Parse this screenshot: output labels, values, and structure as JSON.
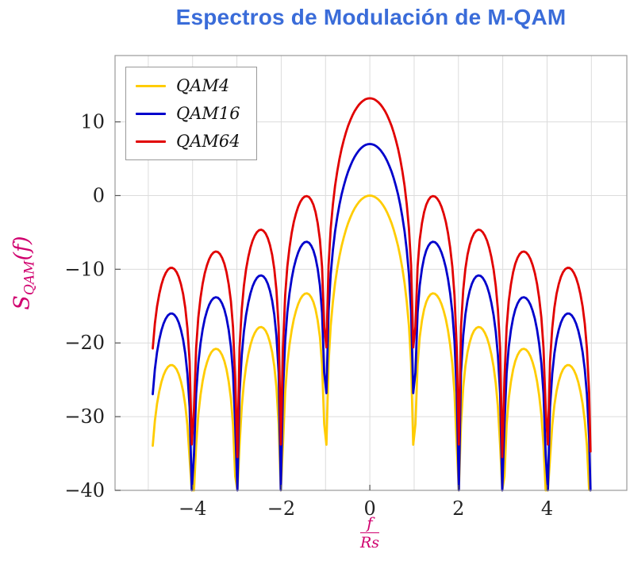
{
  "title": "Espectros de Modulación de M-QAM",
  "ylabel": {
    "main": "S",
    "sub": "QAM",
    "suffix": "(f)"
  },
  "xlabel": {
    "numerator": "f",
    "denominator": "Rs"
  },
  "colors": {
    "title": "#3A6CD9",
    "axis_label": "#D0006E",
    "tick_label": "#222222",
    "grid": "#DCDCDC",
    "frame": "#999999",
    "background": "#FFFFFF"
  },
  "chart_data": {
    "type": "line",
    "title": "Espectros de Modulación de M-QAM",
    "xlabel": "f/Rs",
    "ylabel": "S_QAM(f)",
    "xlim": [
      -5.75,
      5.8
    ],
    "ylim": [
      -40,
      19
    ],
    "x_ticks": [
      -4,
      -2,
      0,
      2,
      4
    ],
    "x_tick_labels": [
      "−4",
      "−2",
      "0",
      "2",
      "4"
    ],
    "y_ticks": [
      -40,
      -30,
      -20,
      -10,
      0,
      10
    ],
    "y_tick_labels": [
      "−40",
      "−30",
      "−20",
      "−10",
      "0",
      "10"
    ],
    "grid": "on",
    "grid_x_step": 1,
    "grid_y_step": 10,
    "legend_position": "top-left",
    "f_range": [
      -4.9,
      4.9
    ],
    "model": "y_dB = offset_db + 20*log10(|sinc(f/Rs)|); sinc(x)=sin(pi*x)/(pi*x); spectral nulls at integer f/Rs",
    "nulls": [
      1,
      2,
      3,
      4
    ],
    "sidelobe_positions": [
      1.43,
      2.46,
      3.47,
      4.48
    ],
    "series": [
      {
        "name": "QAM4",
        "color": "#FFCC00",
        "offset_db": 0,
        "peak_db": 0,
        "sidelobe_db": [
          -13.3,
          -17.8,
          -20.8,
          -23.0
        ],
        "edge_db_at_4.9": -33.9
      },
      {
        "name": "QAM16",
        "color": "#0000CC",
        "offset_db": 7,
        "peak_db": 7,
        "sidelobe_db": [
          -6.3,
          -10.8,
          -13.8,
          -16.0
        ],
        "edge_db_at_4.9": -26.9
      },
      {
        "name": "QAM64",
        "color": "#E10000",
        "offset_db": 13.2,
        "peak_db": 13.2,
        "sidelobe_db": [
          -0.1,
          -4.6,
          -7.6,
          -9.8
        ],
        "edge_db_at_4.9": -20.7
      }
    ]
  }
}
